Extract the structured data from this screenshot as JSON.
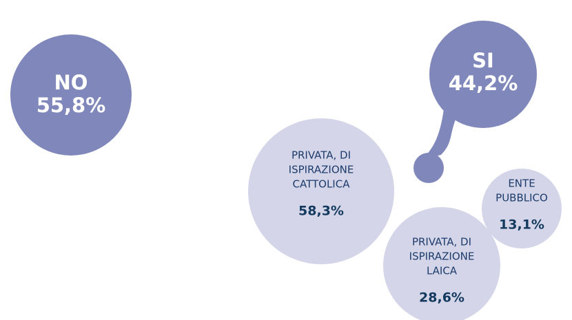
{
  "answers": [
    {
      "label": "NO",
      "value": "55,8%"
    },
    {
      "label": "SI",
      "value": "44,2%"
    }
  ],
  "breakdown": [
    {
      "lines": [
        "PRIVATA, DI",
        "ISPIRAZIONE",
        "CATTOLICA"
      ],
      "value": "58,3%"
    },
    {
      "lines": [
        "PRIVATA, DI",
        "ISPIRAZIONE",
        "LAICA"
      ],
      "value": "28,6%"
    },
    {
      "lines": [
        "ENTE",
        "PUBBLICO"
      ],
      "value": "13,1%"
    }
  ]
}
